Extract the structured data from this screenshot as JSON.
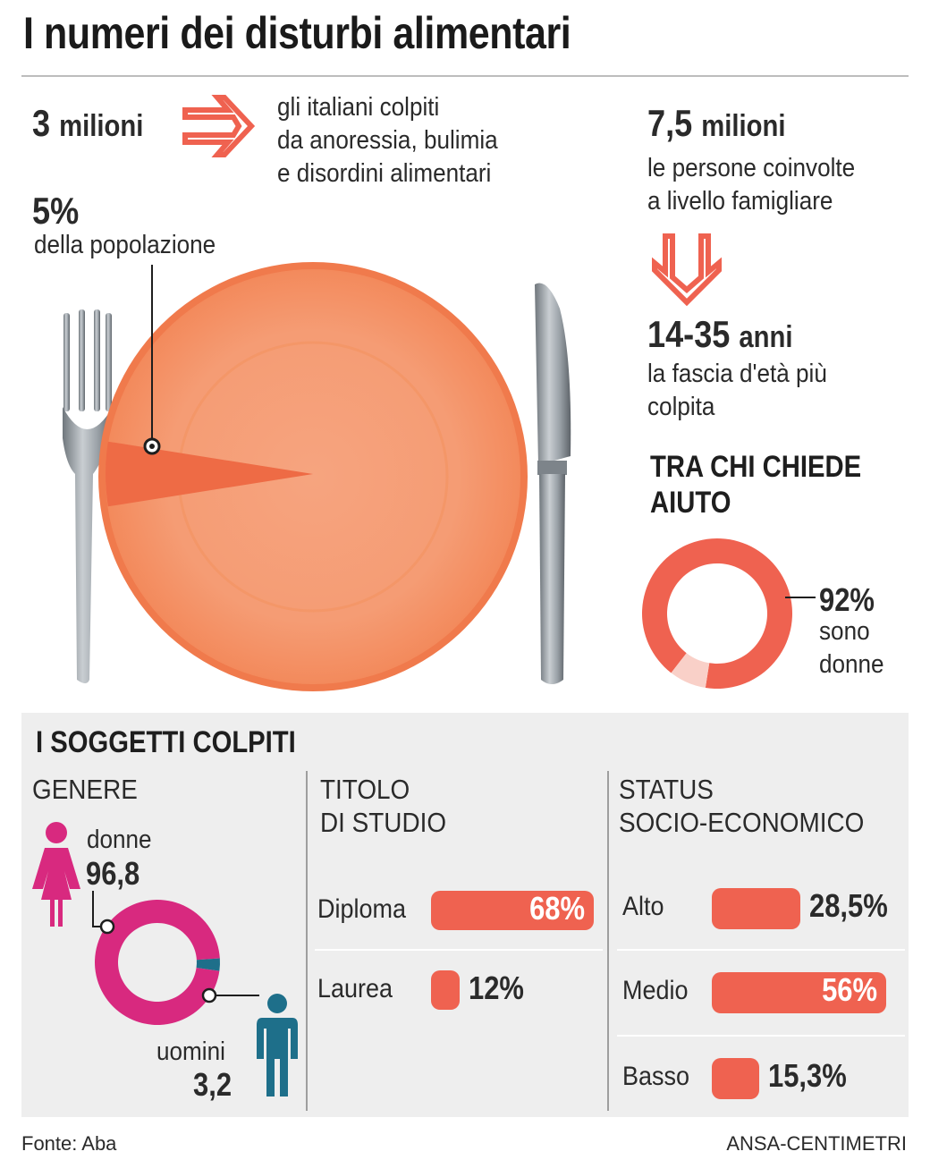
{
  "title": "I numeri dei disturbi alimentari",
  "stats": {
    "colpiti": {
      "value": "3",
      "unit": "milioni",
      "text": [
        "gli italiani colpiti",
        "da anoressia, bulimia",
        "e disordini alimentari"
      ]
    },
    "percentuale": {
      "value": "5%",
      "text": "della popolazione"
    },
    "coinvolte": {
      "value": "7,5",
      "unit": "milioni",
      "text": [
        "le persone coinvolte",
        "a livello famigliare"
      ]
    },
    "eta": {
      "value": "14-35",
      "unit": "anni",
      "text": [
        "la fascia d'età più",
        "colpita"
      ]
    }
  },
  "aiuto": {
    "heading": [
      "TRA CHI CHIEDE",
      "AIUTO"
    ],
    "value": "92%",
    "text": [
      "sono",
      "donne"
    ]
  },
  "soggetti": {
    "heading": "I SOGGETTI COLPITI",
    "genere": {
      "heading": "GENERE",
      "donne_label": "donne",
      "donne_value": "96,8",
      "uomini_label": "uomini",
      "uomini_value": "3,2"
    },
    "titolo": {
      "heading": [
        "TITOLO",
        "DI STUDIO"
      ]
    },
    "status": {
      "heading": [
        "STATUS",
        "SOCIO-ECONOMICO"
      ]
    }
  },
  "chart_data": [
    {
      "type": "pie",
      "categories": [
        "della popolazione",
        ""
      ],
      "values": [
        5,
        95
      ],
      "colors": [
        "#ee6b45",
        "#f5a07a"
      ]
    },
    {
      "type": "pie",
      "categories": [
        "sono donne",
        ""
      ],
      "values": [
        92,
        8
      ],
      "colors": [
        "#ef6250",
        "#f9d0c8"
      ]
    },
    {
      "type": "pie",
      "categories": [
        "donne",
        "uomini"
      ],
      "values": [
        96.8,
        3.2
      ],
      "colors": [
        "#d8297f",
        "#1e6f8a"
      ]
    },
    {
      "type": "bar",
      "categories": [
        "Diploma",
        "Laurea"
      ],
      "values": [
        68,
        12
      ],
      "labels": [
        "68%",
        "12%"
      ],
      "color": "#ef6250"
    },
    {
      "type": "bar",
      "categories": [
        "Alto",
        "Medio",
        "Basso"
      ],
      "values": [
        28.5,
        56,
        15.3
      ],
      "labels": [
        "28,5%",
        "56%",
        "15,3%"
      ],
      "color": "#ef6250"
    }
  ],
  "footer": {
    "source": "Fonte: Aba",
    "credit": "ANSA-CENTIMETRI"
  },
  "colors": {
    "accent": "#ef6250",
    "plate": "#f5a07a",
    "women": "#d8297f",
    "men": "#1e6f8a"
  }
}
